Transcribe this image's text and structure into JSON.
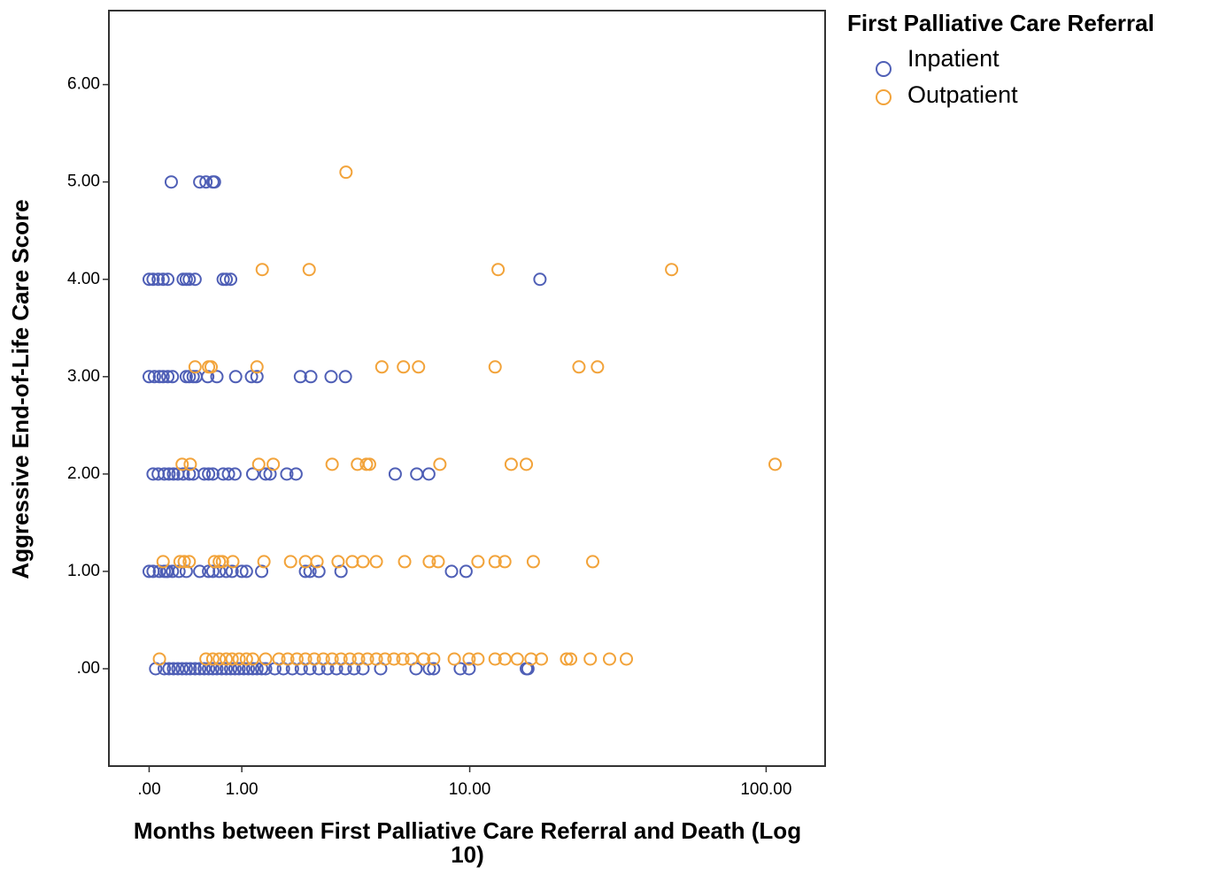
{
  "chart_data": {
    "type": "scatter",
    "xlabel": "Months between First Palliative Care Referral and Death (Log 10)",
    "ylabel": "Aggressive End-of-Life Care Score",
    "legend_title": "First Palliative Care Referral",
    "legend": "right",
    "xscale": "log1p",
    "xlim": [
      -0.26,
      156
    ],
    "ylim": [
      -1.0,
      6.76
    ],
    "xticks": [
      {
        "value": 0,
        "label": ".00"
      },
      {
        "value": 1,
        "label": "1.00"
      },
      {
        "value": 10,
        "label": "10.00"
      },
      {
        "value": 100,
        "label": "100.00"
      }
    ],
    "yticks": [
      {
        "value": 0,
        "label": ".00"
      },
      {
        "value": 1,
        "label": "1.00"
      },
      {
        "value": 2,
        "label": "2.00"
      },
      {
        "value": 3,
        "label": "3.00"
      },
      {
        "value": 4,
        "label": "4.00"
      },
      {
        "value": 5,
        "label": "5.00"
      },
      {
        "value": 6,
        "label": "6.00"
      }
    ],
    "series": [
      {
        "name": "Inpatient",
        "color": "#4f5fb6",
        "x": [
          0.18,
          0.46,
          0.53,
          0.61,
          0.63,
          0,
          0.03,
          0.07,
          0.11,
          0.15,
          0.29,
          0.32,
          0.35,
          0.41,
          0.74,
          0.78,
          0.84,
          17.6,
          0,
          0.04,
          0.08,
          0.11,
          0.15,
          0.19,
          0.32,
          0.35,
          0.39,
          0.42,
          0.55,
          0.66,
          0.91,
          1.15,
          1.24,
          2.1,
          2.35,
          2.9,
          3.34,
          0.03,
          0.07,
          0.12,
          0.16,
          0.2,
          0.24,
          0.29,
          0.35,
          0.39,
          0.51,
          0.56,
          0.61,
          0.74,
          0.81,
          0.9,
          1.17,
          1.39,
          1.47,
          1.8,
          2.0,
          5.3,
          6.4,
          7.1,
          0,
          0.03,
          0.08,
          0.12,
          0.14,
          0.15,
          0.19,
          0.25,
          0.32,
          0.46,
          0.56,
          0.61,
          0.69,
          0.78,
          0.86,
          1.0,
          1.07,
          1.32,
          2.22,
          2.33,
          2.56,
          3.2,
          8.6,
          9.7,
          0.05,
          0.12,
          0.16,
          0.2,
          0.24,
          0.28,
          0.32,
          0.36,
          0.41,
          0.46,
          0.51,
          0.56,
          0.61,
          0.66,
          0.72,
          0.78,
          0.84,
          0.9,
          0.96,
          1.03,
          1.1,
          1.17,
          1.24,
          1.32,
          1.39,
          1.56,
          1.73,
          1.92,
          2.12,
          2.33,
          2.56,
          2.8,
          3.06,
          3.34,
          3.63,
          3.95,
          4.65,
          6.36,
          7.13,
          7.4,
          9.25,
          9.95,
          15.8,
          16.0
        ],
        "values": [
          5,
          5,
          5,
          5,
          5,
          4,
          4,
          4,
          4,
          4,
          4,
          4,
          4,
          4,
          4,
          4,
          4,
          4,
          3,
          3,
          3,
          3,
          3,
          3,
          3,
          3,
          3,
          3,
          3,
          3,
          3,
          3,
          3,
          3,
          3,
          3,
          3,
          2,
          2,
          2,
          2,
          2,
          2,
          2,
          2,
          2,
          2,
          2,
          2,
          2,
          2,
          2,
          2,
          2,
          2,
          2,
          2,
          2,
          2,
          2,
          1,
          1,
          1,
          1,
          1,
          1,
          1,
          1,
          1,
          1,
          1,
          1,
          1,
          1,
          1,
          1,
          1,
          1,
          1,
          1,
          1,
          1,
          1,
          1,
          0,
          0,
          0,
          0,
          0,
          0,
          0,
          0,
          0,
          0,
          0,
          0,
          0,
          0,
          0,
          0,
          0,
          0,
          0,
          0,
          0,
          0,
          0,
          0,
          0,
          0,
          0,
          0,
          0,
          0,
          0,
          0,
          0,
          0,
          0,
          0,
          0,
          0,
          0,
          0,
          0,
          0,
          0,
          0
        ]
      },
      {
        "name": "Outpatient",
        "color": "#f2a33a",
        "x": [
          3.36,
          1.33,
          2.31,
          12.6,
          48.8,
          0.41,
          0.56,
          0.59,
          1.24,
          4.7,
          5.7,
          6.5,
          12.3,
          23.9,
          27.6,
          0.28,
          0.36,
          1.27,
          1.53,
          2.93,
          3.75,
          4.08,
          4.2,
          7.8,
          14,
          15.8,
          107,
          0.11,
          0.26,
          0.3,
          0.35,
          0.63,
          0.69,
          0.73,
          0.87,
          1.36,
          1.88,
          2.22,
          2.51,
          3.11,
          3.57,
          3.95,
          4.47,
          5.76,
          7.13,
          7.69,
          10.7,
          12.3,
          13.3,
          16.7,
          26.6,
          0.08,
          0.53,
          0.61,
          0.69,
          0.78,
          0.86,
          0.96,
          1.07,
          1.17,
          1.39,
          1.64,
          1.82,
          2.02,
          2.22,
          2.44,
          2.68,
          2.93,
          3.2,
          3.49,
          3.79,
          4.12,
          4.47,
          4.84,
          5.24,
          5.67,
          6.12,
          6.8,
          7.4,
          8.8,
          9.95,
          10.7,
          12.3,
          13.3,
          14.7,
          16.4,
          17.8,
          21.7,
          22.4,
          26.1,
          30.3,
          34.5
        ],
        "values": [
          5.1,
          4.1,
          4.1,
          4.1,
          4.1,
          3.1,
          3.1,
          3.1,
          3.1,
          3.1,
          3.1,
          3.1,
          3.1,
          3.1,
          3.1,
          2.1,
          2.1,
          2.1,
          2.1,
          2.1,
          2.1,
          2.1,
          2.1,
          2.1,
          2.1,
          2.1,
          2.1,
          1.1,
          1.1,
          1.1,
          1.1,
          1.1,
          1.1,
          1.1,
          1.1,
          1.1,
          1.1,
          1.1,
          1.1,
          1.1,
          1.1,
          1.1,
          1.1,
          1.1,
          1.1,
          1.1,
          1.1,
          1.1,
          1.1,
          1.1,
          1.1,
          0.1,
          0.1,
          0.1,
          0.1,
          0.1,
          0.1,
          0.1,
          0.1,
          0.1,
          0.1,
          0.1,
          0.1,
          0.1,
          0.1,
          0.1,
          0.1,
          0.1,
          0.1,
          0.1,
          0.1,
          0.1,
          0.1,
          0.1,
          0.1,
          0.1,
          0.1,
          0.1,
          0.1,
          0.1,
          0.1,
          0.1,
          0.1,
          0.1,
          0.1,
          0.1,
          0.1,
          0.1,
          0.1,
          0.1,
          0.1,
          0.1
        ]
      }
    ]
  }
}
